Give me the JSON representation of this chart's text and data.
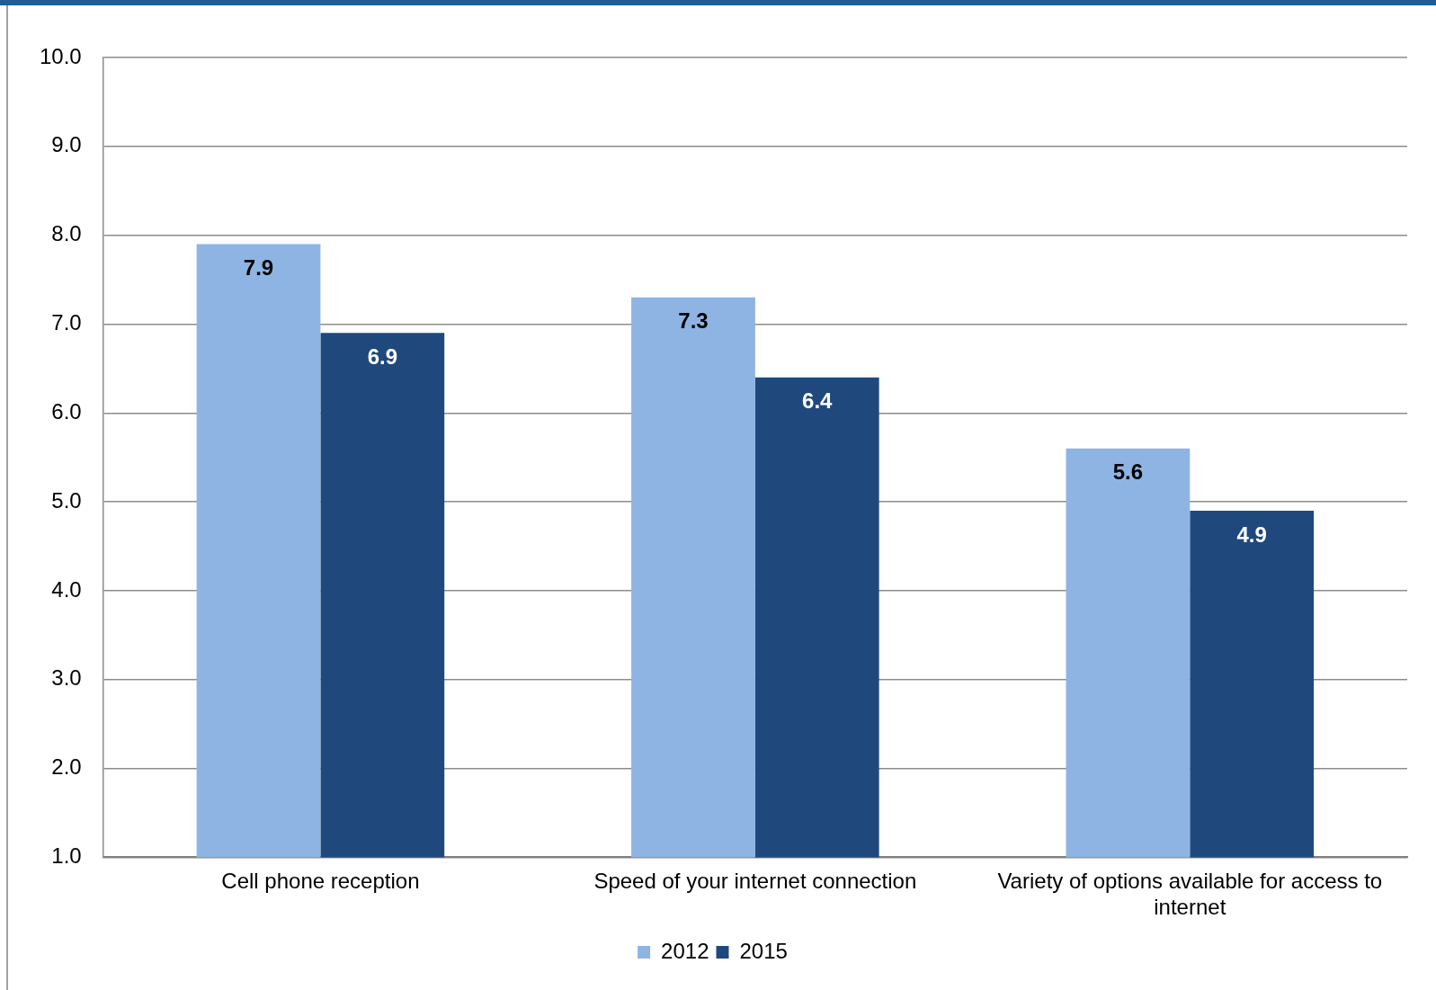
{
  "chart_data": {
    "type": "bar",
    "categories": [
      "Cell phone reception",
      "Speed of your internet connection",
      "Variety of options available for access to internet"
    ],
    "series": [
      {
        "name": "2012",
        "color": "#8eb4e3",
        "values": [
          7.9,
          7.3,
          5.6
        ]
      },
      {
        "name": "2015",
        "color": "#1f497d",
        "values": [
          6.9,
          6.4,
          4.9
        ]
      }
    ],
    "ylim": [
      1,
      10
    ],
    "yticks": [
      {
        "value": 1,
        "label": "1.0"
      },
      {
        "value": 2,
        "label": "2.0"
      },
      {
        "value": 3,
        "label": "3.0"
      },
      {
        "value": 4,
        "label": "4.0"
      },
      {
        "value": 5,
        "label": "5.0"
      },
      {
        "value": 6,
        "label": "6.0"
      },
      {
        "value": 7,
        "label": "7.0"
      },
      {
        "value": 8,
        "label": "8.0"
      },
      {
        "value": 9,
        "label": "9.0"
      },
      {
        "value": 10,
        "label": "10.0"
      }
    ],
    "grid": "y",
    "legend": "bottom",
    "data_labels": true
  }
}
